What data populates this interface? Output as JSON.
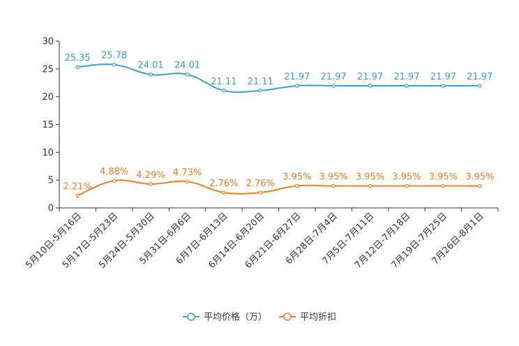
{
  "chart_data": {
    "type": "line",
    "title": "",
    "xlabel": "",
    "ylabel": "",
    "ylim": [
      0,
      30
    ],
    "yticks": [
      0,
      5,
      10,
      15,
      20,
      25,
      30
    ],
    "grid": false,
    "legend_position": "bottom-center",
    "categories": [
      "5月10日-5月16日",
      "5月17日-5月23日",
      "5月24日-5月30日",
      "5月31日-6月6日",
      "6月7日-6月13日",
      "6月14日-6月20日",
      "6月21日-6月27日",
      "6月28日-7月4日",
      "7月5日-7月11日",
      "7月12日-7月18日",
      "7月19日-7月25日",
      "7月26日-8月1日"
    ],
    "series": [
      {
        "name": "平均价格（万）",
        "color": "#3a9fcf",
        "values": [
          25.35,
          25.78,
          24.01,
          24.01,
          21.11,
          21.11,
          21.97,
          21.97,
          21.97,
          21.97,
          21.97,
          21.97
        ],
        "labels": [
          "25.35",
          "25.78",
          "24.01",
          "24.01",
          "21.11",
          "21.11",
          "21.97",
          "21.97",
          "21.97",
          "21.97",
          "21.97",
          "21.97"
        ]
      },
      {
        "name": "平均折扣",
        "color": "#f07c1e",
        "values": [
          2.21,
          4.88,
          4.29,
          4.73,
          2.76,
          2.76,
          3.95,
          3.95,
          3.95,
          3.95,
          3.95,
          3.95
        ],
        "labels": [
          "2.21%",
          "4.88%",
          "4.29%",
          "4.73%",
          "2.76%",
          "2.76%",
          "3.95%",
          "3.95%",
          "3.95%",
          "3.95%",
          "3.95%",
          "3.95%"
        ]
      }
    ]
  }
}
